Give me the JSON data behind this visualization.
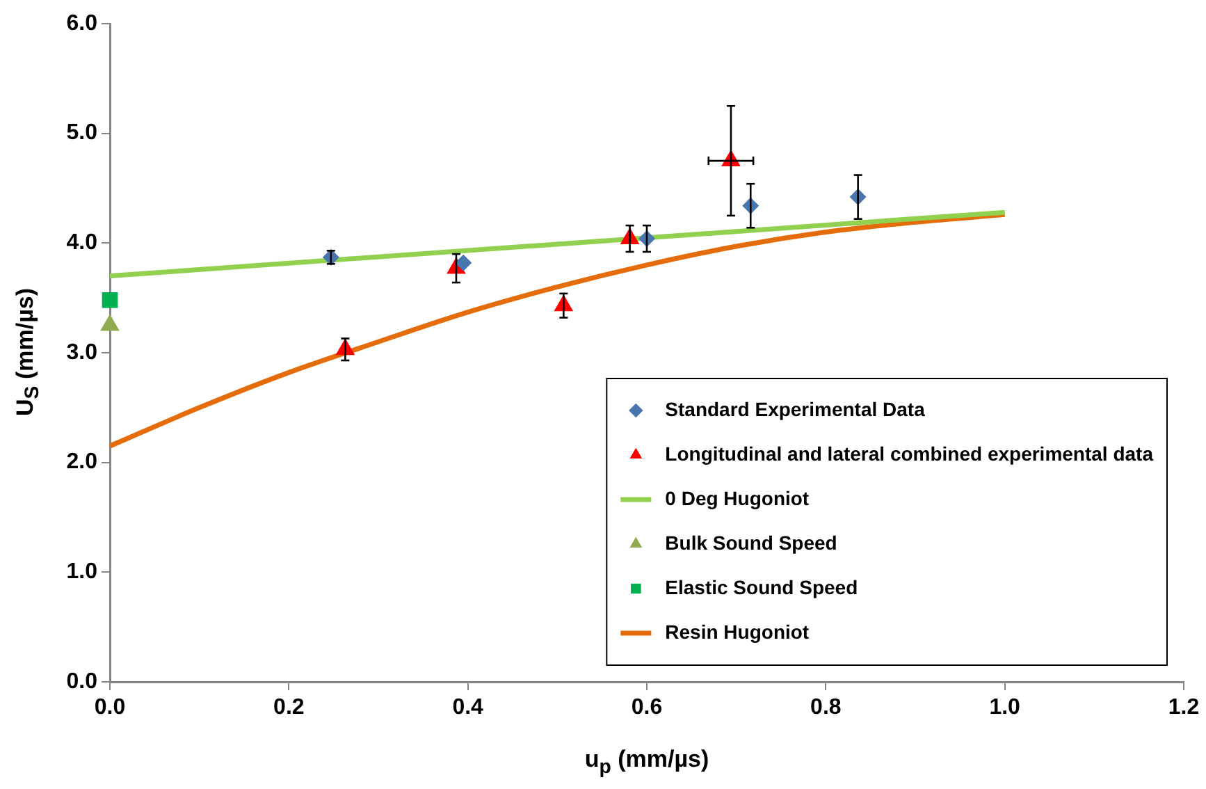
{
  "chart_data": {
    "type": "scatter",
    "xlabel": "u$_{p}$ (mm/µs)",
    "ylabel": "U$_{S}$ (mm/µs)",
    "xlim": [
      0,
      1.2
    ],
    "xticks": [
      {
        "value": 0,
        "label": "0.0"
      },
      {
        "value": 0.2,
        "label": "0.2"
      },
      {
        "value": 0.4,
        "label": "0.4"
      },
      {
        "value": 0.6,
        "label": "0.6"
      },
      {
        "value": 0.8,
        "label": "0.8"
      },
      {
        "value": 1,
        "label": "1.0"
      },
      {
        "value": 1.2,
        "label": "1.2"
      }
    ],
    "ylim": [
      0,
      6
    ],
    "yticks": [
      {
        "value": 0,
        "label": "0.0"
      },
      {
        "value": 1,
        "label": "1.0"
      },
      {
        "value": 2,
        "label": "2.0"
      },
      {
        "value": 3,
        "label": "3.0"
      },
      {
        "value": 4,
        "label": "4.0"
      },
      {
        "value": 5,
        "label": "5.0"
      },
      {
        "value": 6,
        "label": "6.0"
      }
    ],
    "grid": false,
    "legend": "bottom right",
    "series": [
      {
        "name": "Standard Experimental Data",
        "marker": "diamond",
        "color": "#4a76b0",
        "x": [
          0.247,
          0.395,
          0.6,
          0.716,
          0.836
        ],
        "values": [
          3.87,
          3.82,
          4.04,
          4.34,
          4.42
        ],
        "errors": [
          0.06,
          null,
          0.12,
          0.2,
          0.2
        ]
      },
      {
        "name": "Longitudinal and lateral combined experimental data",
        "marker": "triangle",
        "color": "#ff0000",
        "x": [
          0.263,
          0.387,
          0.507,
          0.581,
          0.694
        ],
        "values": [
          3.03,
          3.77,
          3.43,
          4.04,
          4.75
        ],
        "errors": [
          0.1,
          0.13,
          0.11,
          0.12,
          0.5
        ],
        "xerrors": [
          null,
          null,
          null,
          null,
          0.025
        ]
      },
      {
        "name": "0 Deg Hugoniot",
        "type": "line",
        "marker": "none",
        "color": "#92d050",
        "x": [
          0,
          1
        ],
        "values": [
          3.7,
          4.28
        ]
      },
      {
        "name": "Bulk Sound Speed",
        "marker": "triangle",
        "color": "#8faa4f",
        "x": [
          0
        ],
        "values": [
          3.25
        ]
      },
      {
        "name": "Elastic Sound Speed",
        "marker": "square",
        "color": "#00b050",
        "x": [
          0
        ],
        "values": [
          3.48
        ]
      },
      {
        "name": "Resin Hugoniot",
        "type": "line",
        "marker": "none",
        "color": "#e46c0a",
        "x": [
          0,
          0.1,
          0.2,
          0.3,
          0.4,
          0.5,
          0.6,
          0.7,
          0.8,
          0.9,
          1
        ],
        "values": [
          2.15,
          2.5,
          2.82,
          3.1,
          3.37,
          3.6,
          3.8,
          3.97,
          4.1,
          4.19,
          4.26
        ]
      }
    ]
  }
}
